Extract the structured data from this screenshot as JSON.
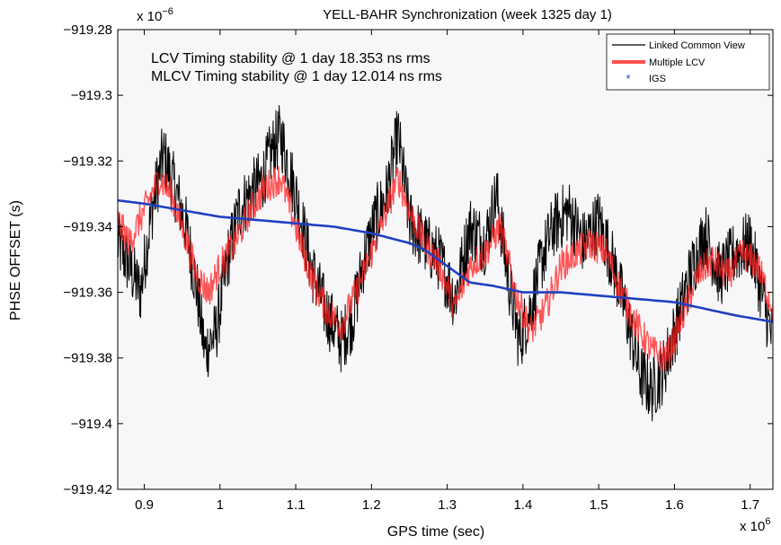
{
  "chart_data": {
    "type": "line",
    "title": "YELL-BAHR Synchronization (week 1325 day 1)",
    "xlabel": "GPS time (sec)",
    "ylabel": "PHSE OFFSET (s)",
    "x_multiplier_label": "x 10",
    "x_multiplier_exp": "6",
    "y_multiplier_label": "x 10",
    "y_multiplier_exp": "−6",
    "xlim": [
      0.865,
      1.73
    ],
    "ylim": [
      -919.42,
      -919.28
    ],
    "x_ticks": [
      {
        "value": 0.9,
        "label": "0.9"
      },
      {
        "value": 1.0,
        "label": "1"
      },
      {
        "value": 1.1,
        "label": "1.1"
      },
      {
        "value": 1.2,
        "label": "1.2"
      },
      {
        "value": 1.3,
        "label": "1.3"
      },
      {
        "value": 1.4,
        "label": "1.4"
      },
      {
        "value": 1.5,
        "label": "1.5"
      },
      {
        "value": 1.6,
        "label": "1.6"
      },
      {
        "value": 1.7,
        "label": "1.7"
      }
    ],
    "y_ticks": [
      {
        "value": -919.28,
        "label": "−919.28"
      },
      {
        "value": -919.3,
        "label": "−919.3"
      },
      {
        "value": -919.32,
        "label": "−919.32"
      },
      {
        "value": -919.34,
        "label": "−919.34"
      },
      {
        "value": -919.36,
        "label": "−919.36"
      },
      {
        "value": -919.38,
        "label": "−919.38"
      },
      {
        "value": -919.4,
        "label": "−919.4"
      },
      {
        "value": -919.42,
        "label": "−919.42"
      }
    ],
    "grid": false,
    "legend_position": "top-right",
    "annotations": [
      "LCV Timing stability @ 1 day 18.353 ns rms",
      "MLCV Timing stability @ 1 day 12.014 ns rms"
    ],
    "series": [
      {
        "name": "Linked Common View",
        "color": "#000000",
        "style": "line",
        "noise": 0.01,
        "x": [
          0.865,
          0.88,
          0.895,
          0.91,
          0.925,
          0.94,
          0.955,
          0.97,
          0.98,
          0.995,
          1.01,
          1.025,
          1.04,
          1.055,
          1.07,
          1.08,
          1.1,
          1.12,
          1.14,
          1.16,
          1.175,
          1.19,
          1.205,
          1.22,
          1.235,
          1.25,
          1.27,
          1.29,
          1.31,
          1.33,
          1.35,
          1.365,
          1.38,
          1.395,
          1.41,
          1.425,
          1.44,
          1.46,
          1.48,
          1.5,
          1.52,
          1.54,
          1.555,
          1.57,
          1.585,
          1.6,
          1.62,
          1.64,
          1.66,
          1.68,
          1.7,
          1.715,
          1.73
        ],
        "y": [
          -919.345,
          -919.352,
          -919.36,
          -919.335,
          -919.318,
          -919.328,
          -919.34,
          -919.36,
          -919.378,
          -919.372,
          -919.35,
          -919.335,
          -919.33,
          -919.326,
          -919.316,
          -919.312,
          -919.33,
          -919.352,
          -919.366,
          -919.375,
          -919.368,
          -919.35,
          -919.338,
          -919.33,
          -919.312,
          -919.338,
          -919.345,
          -919.35,
          -919.362,
          -919.34,
          -919.345,
          -919.33,
          -919.355,
          -919.375,
          -919.365,
          -919.35,
          -919.34,
          -919.335,
          -919.345,
          -919.338,
          -919.352,
          -919.37,
          -919.385,
          -919.39,
          -919.384,
          -919.372,
          -919.355,
          -919.342,
          -919.355,
          -919.348,
          -919.345,
          -919.36,
          -919.375
        ]
      },
      {
        "name": "Multiple LCV",
        "color": "#ff2020",
        "style": "line",
        "noise": 0.005,
        "x": [
          0.865,
          0.88,
          0.9,
          0.92,
          0.935,
          0.95,
          0.97,
          0.985,
          1.0,
          1.02,
          1.04,
          1.06,
          1.08,
          1.1,
          1.12,
          1.14,
          1.16,
          1.18,
          1.2,
          1.22,
          1.235,
          1.25,
          1.27,
          1.29,
          1.31,
          1.33,
          1.35,
          1.37,
          1.39,
          1.41,
          1.43,
          1.45,
          1.47,
          1.49,
          1.51,
          1.53,
          1.55,
          1.57,
          1.59,
          1.61,
          1.63,
          1.65,
          1.67,
          1.69,
          1.71,
          1.73
        ],
        "y": [
          -919.338,
          -919.345,
          -919.335,
          -919.325,
          -919.33,
          -919.34,
          -919.355,
          -919.36,
          -919.352,
          -919.345,
          -919.335,
          -919.328,
          -919.325,
          -919.34,
          -919.355,
          -919.365,
          -919.37,
          -919.36,
          -919.348,
          -919.335,
          -919.325,
          -919.335,
          -919.345,
          -919.352,
          -919.365,
          -919.352,
          -919.348,
          -919.34,
          -919.36,
          -919.372,
          -919.365,
          -919.352,
          -919.348,
          -919.345,
          -919.348,
          -919.36,
          -919.37,
          -919.378,
          -919.38,
          -919.368,
          -919.355,
          -919.35,
          -919.355,
          -919.348,
          -919.352,
          -919.365
        ]
      },
      {
        "name": "IGS",
        "color": "#2040c0",
        "style": "line",
        "noise": 0,
        "x": [
          0.865,
          0.9,
          0.95,
          1.0,
          1.05,
          1.1,
          1.15,
          1.2,
          1.25,
          1.27,
          1.3,
          1.33,
          1.36,
          1.4,
          1.45,
          1.5,
          1.55,
          1.6,
          1.64,
          1.68,
          1.73
        ],
        "y": [
          -919.332,
          -919.333,
          -919.335,
          -919.337,
          -919.338,
          -919.339,
          -919.34,
          -919.342,
          -919.345,
          -919.347,
          -919.352,
          -919.357,
          -919.358,
          -919.36,
          -919.36,
          -919.361,
          -919.362,
          -919.363,
          -919.365,
          -919.367,
          -919.369
        ]
      }
    ]
  }
}
